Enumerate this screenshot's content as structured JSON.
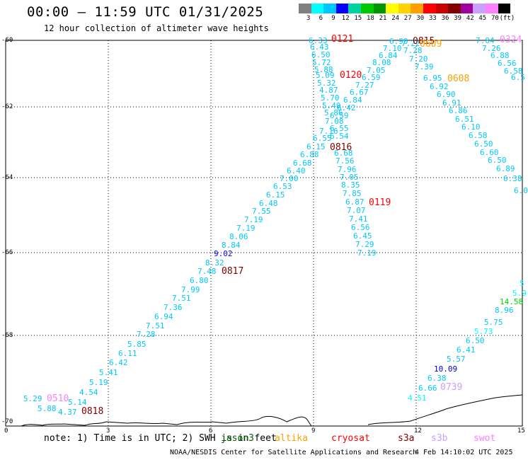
{
  "header": {
    "title": "00:00 – 11:59 UTC 01/31/2025",
    "subtitle": "12 hour collection of altimeter wave heights"
  },
  "legend": {
    "unit": "(ft)",
    "colors": [
      "#808080",
      "#00ffff",
      "#00c8ff",
      "#0000ff",
      "#00d2a0",
      "#00c800",
      "#009600",
      "#ffff00",
      "#ffd200",
      "#ffa000",
      "#ff0000",
      "#c80000",
      "#800000",
      "#a000a0",
      "#c8a0ff",
      "#ff80ff",
      "#000000"
    ],
    "ticks": [
      "3",
      "6",
      "9",
      "12",
      "15",
      "18",
      "21",
      "24",
      "27",
      "30",
      "33",
      "36",
      "39",
      "42",
      "45",
      "70"
    ]
  },
  "axes": {
    "y_labels": [
      "-60",
      "-62",
      "-64",
      "-66",
      "-68",
      "-70"
    ],
    "x_labels": [
      "0",
      "3",
      "6",
      "9",
      "12",
      "15"
    ]
  },
  "tracks": [
    {
      "id": "0818",
      "time_color": "#800000",
      "points": [
        {
          "v": "5.29",
          "c": "#00c8ff"
        },
        {
          "v": "5.88",
          "c": "#00c8ff"
        },
        {
          "v": "4.37",
          "c": "#00c8ff"
        },
        {
          "v": "5.14",
          "c": "#00c8ff"
        },
        {
          "v": "4.54",
          "c": "#00c8ff"
        },
        {
          "v": "5.19",
          "c": "#00c8ff"
        },
        {
          "v": "5.41",
          "c": "#00c8ff"
        },
        {
          "v": "6.42",
          "c": "#00c8ff"
        },
        {
          "v": "6.11",
          "c": "#00c8ff"
        },
        {
          "v": "5.85",
          "c": "#00c8ff"
        },
        {
          "v": "7.28",
          "c": "#00c8ff"
        },
        {
          "v": "7.51",
          "c": "#00c8ff"
        },
        {
          "v": "6.94",
          "c": "#00c8ff"
        },
        {
          "v": "7.36",
          "c": "#00c8ff"
        },
        {
          "v": "7.51",
          "c": "#00c8ff"
        },
        {
          "v": "7.99",
          "c": "#00c8ff"
        },
        {
          "v": "6.80",
          "c": "#00c8ff"
        },
        {
          "v": "7.48",
          "c": "#00c8ff"
        },
        {
          "v": "8.32",
          "c": "#00c8ff"
        },
        {
          "v": "9.02",
          "c": "#0000ff"
        },
        {
          "v": "8.84",
          "c": "#00c8ff"
        },
        {
          "v": "8.06",
          "c": "#00c8ff"
        },
        {
          "v": "7.19",
          "c": "#00c8ff"
        },
        {
          "v": "7.19",
          "c": "#00c8ff"
        },
        {
          "v": "7.55",
          "c": "#00c8ff"
        },
        {
          "v": "6.48",
          "c": "#00c8ff"
        },
        {
          "v": "6.15",
          "c": "#00c8ff"
        },
        {
          "v": "6.53",
          "c": "#00c8ff"
        },
        {
          "v": "7.00",
          "c": "#00c8ff"
        },
        {
          "v": "6.40",
          "c": "#00c8ff"
        },
        {
          "v": "6.68",
          "c": "#00c8ff"
        },
        {
          "v": "6.88",
          "c": "#00c8ff"
        },
        {
          "v": "6.15",
          "c": "#00c8ff"
        },
        {
          "v": "6.55",
          "c": "#00c8ff"
        },
        {
          "v": "7.16",
          "c": "#00c8ff"
        }
      ]
    },
    {
      "id": "0121",
      "points": [
        {
          "v": "6.33",
          "c": "#00c8ff"
        },
        {
          "v": "6.43",
          "c": "#00c8ff"
        },
        {
          "v": "6.50",
          "c": "#00c8ff"
        },
        {
          "v": "5.72",
          "c": "#00c8ff"
        },
        {
          "v": "5.88",
          "c": "#00c8ff"
        },
        {
          "v": "5.09",
          "c": "#00c8ff"
        },
        {
          "v": "5.32",
          "c": "#00c8ff"
        },
        {
          "v": "4.87",
          "c": "#00c8ff"
        },
        {
          "v": "5.70",
          "c": "#00c8ff"
        },
        {
          "v": "5.49",
          "c": "#00c8ff"
        },
        {
          "v": "5.86",
          "c": "#00c8ff"
        },
        {
          "v": "7.08",
          "c": "#00c8ff"
        },
        {
          "v": "6.59",
          "c": "#00c8ff"
        },
        {
          "v": "6.55",
          "c": "#00c8ff"
        },
        {
          "v": "6.54",
          "c": "#00c8ff"
        },
        {
          "v": "6.68",
          "c": "#00c8ff"
        },
        {
          "v": "7.56",
          "c": "#00c8ff"
        },
        {
          "v": "7.96",
          "c": "#00c8ff"
        },
        {
          "v": "7.05",
          "c": "#00c8ff"
        },
        {
          "v": "8.35",
          "c": "#00c8ff"
        },
        {
          "v": "7.85",
          "c": "#00c8ff"
        },
        {
          "v": "6.87",
          "c": "#00c8ff"
        },
        {
          "v": "7.07",
          "c": "#00c8ff"
        },
        {
          "v": "7.41",
          "c": "#00c8ff"
        },
        {
          "v": "6.56",
          "c": "#00c8ff"
        },
        {
          "v": "6.45",
          "c": "#00c8ff"
        },
        {
          "v": "7.29",
          "c": "#00c8ff"
        },
        {
          "v": "7.19",
          "c": "#00c8ff"
        }
      ]
    },
    {
      "id": "0120",
      "points": [
        {
          "v": "6.90",
          "c": "#00c8ff"
        },
        {
          "v": "7.10",
          "c": "#00c8ff"
        },
        {
          "v": "6.84",
          "c": "#00c8ff"
        },
        {
          "v": "8.08",
          "c": "#00c8ff"
        },
        {
          "v": "7.05",
          "c": "#00c8ff"
        },
        {
          "v": "6.59",
          "c": "#00c8ff"
        },
        {
          "v": "7.27",
          "c": "#00c8ff"
        },
        {
          "v": "6.67",
          "c": "#00c8ff"
        },
        {
          "v": "6.84",
          "c": "#00c8ff"
        },
        {
          "v": "6.42",
          "c": "#00c8ff"
        }
      ]
    },
    {
      "id": "0815",
      "points": [
        {
          "v": "7.22",
          "c": "#00c8ff"
        },
        {
          "v": "7.28",
          "c": "#00c8ff"
        },
        {
          "v": "7.20",
          "c": "#00c8ff"
        },
        {
          "v": "7.39",
          "c": "#00c8ff"
        },
        {
          "v": "6.95",
          "c": "#00c8ff"
        },
        {
          "v": "6.92",
          "c": "#00c8ff"
        },
        {
          "v": "6.90",
          "c": "#00c8ff"
        },
        {
          "v": "6.91",
          "c": "#00c8ff"
        },
        {
          "v": "6.86",
          "c": "#00c8ff"
        },
        {
          "v": "6.51",
          "c": "#00c8ff"
        },
        {
          "v": "6.10",
          "c": "#00c8ff"
        },
        {
          "v": "6.58",
          "c": "#00c8ff"
        },
        {
          "v": "6.50",
          "c": "#00c8ff"
        },
        {
          "v": "6.60",
          "c": "#00c8ff"
        },
        {
          "v": "6.50",
          "c": "#00c8ff"
        },
        {
          "v": "6.89",
          "c": "#00c8ff"
        },
        {
          "v": "6.38",
          "c": "#00c8ff"
        },
        {
          "v": "6.0",
          "c": "#00c8ff"
        }
      ]
    },
    {
      "id": "0324",
      "points": [
        {
          "v": "7.04",
          "c": "#00c8ff"
        },
        {
          "v": "7.26",
          "c": "#00c8ff"
        },
        {
          "v": "6.88",
          "c": "#00c8ff"
        },
        {
          "v": "6.56",
          "c": "#00c8ff"
        },
        {
          "v": "6.58",
          "c": "#00c8ff"
        },
        {
          "v": "6.5",
          "c": "#00c8ff"
        }
      ]
    },
    {
      "id": "0739",
      "points": [
        {
          "v": "5",
          "c": "#00ffff"
        },
        {
          "v": "5.9",
          "c": "#00ffff"
        },
        {
          "v": "14.58",
          "c": "#00d200"
        },
        {
          "v": "8.96",
          "c": "#00c8ff"
        },
        {
          "v": "5.75",
          "c": "#00c8ff"
        },
        {
          "v": "5.73",
          "c": "#00ffff"
        },
        {
          "v": "6.50",
          "c": "#00c8ff"
        },
        {
          "v": "6.41",
          "c": "#00c8ff"
        },
        {
          "v": "5.57",
          "c": "#00c8ff"
        },
        {
          "v": "10.09",
          "c": "#0000c8"
        },
        {
          "v": "6.38",
          "c": "#00c8ff"
        },
        {
          "v": "6.66",
          "c": "#00c8ff"
        },
        {
          "v": "4.51",
          "c": "#00ffff"
        }
      ]
    }
  ],
  "pass_labels": [
    {
      "text": "0121",
      "c": "#ff0000"
    },
    {
      "text": "0120",
      "c": "#ff0000"
    },
    {
      "text": "0815",
      "c": "#800000"
    },
    {
      "text": "0609",
      "c": "#ffa000"
    },
    {
      "text": "0608",
      "c": "#ffa000"
    },
    {
      "text": "0324",
      "c": "#ff80ff"
    },
    {
      "text": "0816",
      "c": "#800000"
    },
    {
      "text": "0119",
      "c": "#ff0000"
    },
    {
      "text": "0817",
      "c": "#800000"
    },
    {
      "text": "0510",
      "c": "#ff80ff"
    },
    {
      "text": "0818",
      "c": "#800000"
    },
    {
      "text": "0739",
      "c": "#c8a0ff"
    }
  ],
  "footer": {
    "note": "note: 1) Time is in UTC; 2) SWH is in feet",
    "satellites": [
      {
        "name": "jason3",
        "c": "#006400"
      },
      {
        "name": "altika",
        "c": "#ffa000"
      },
      {
        "name": "cryosat",
        "c": "#ff0000"
      },
      {
        "name": "s3a",
        "c": "#800000"
      },
      {
        "name": "s3b",
        "c": "#c8a0ff"
      },
      {
        "name": "swot",
        "c": "#ff80ff"
      }
    ],
    "credit": "NOAA/NESDIS Center for Satellite Applications and Research",
    "timestamp": "4 Feb 14:10:02 UTC 2025"
  }
}
